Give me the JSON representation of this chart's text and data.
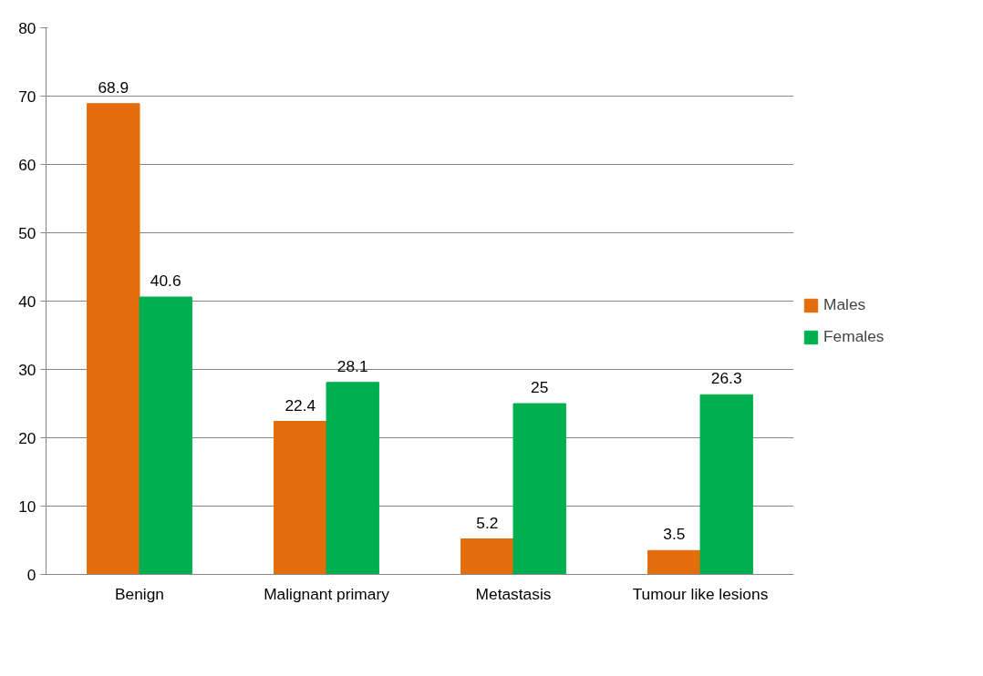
{
  "chart_data": {
    "type": "bar",
    "categories": [
      "Benign",
      "Malignant primary",
      "Metastasis",
      "Tumour like lesions"
    ],
    "series": [
      {
        "name": "Males",
        "color": "#e46c0a",
        "values": [
          68.9,
          22.4,
          5.2,
          3.5
        ]
      },
      {
        "name": "Females",
        "color": "#00b050",
        "values": [
          40.6,
          28.1,
          25,
          26.3
        ]
      }
    ],
    "ylim": [
      0,
      80
    ],
    "yticks": [
      0,
      10,
      20,
      30,
      40,
      50,
      60,
      70,
      80
    ],
    "grid": "y",
    "legend": "right",
    "data_labels": true
  }
}
